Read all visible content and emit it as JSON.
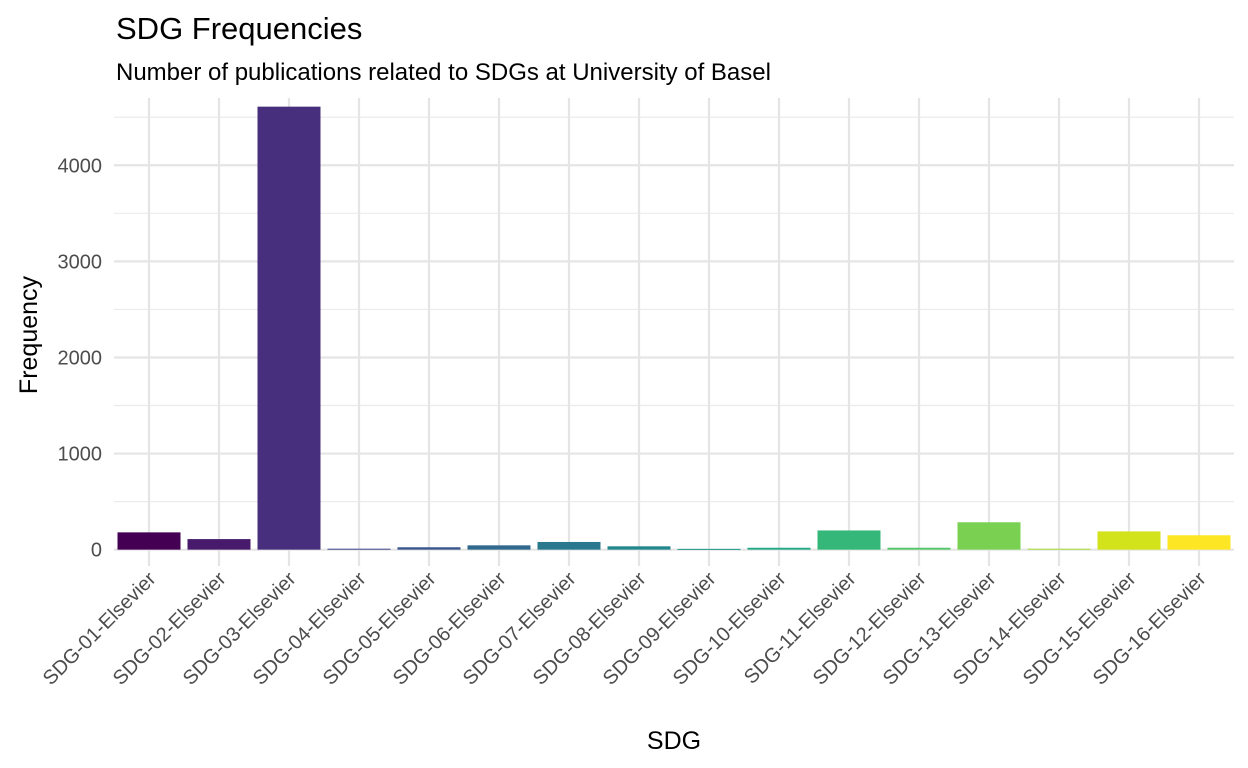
{
  "chart_data": {
    "type": "bar",
    "title": "SDG Frequencies",
    "subtitle": "Number of publications related to SDGs at University of Basel",
    "xlabel": "SDG",
    "ylabel": "Frequency",
    "categories": [
      "SDG-01-Elsevier",
      "SDG-02-Elsevier",
      "SDG-03-Elsevier",
      "SDG-04-Elsevier",
      "SDG-05-Elsevier",
      "SDG-06-Elsevier",
      "SDG-07-Elsevier",
      "SDG-08-Elsevier",
      "SDG-09-Elsevier",
      "SDG-10-Elsevier",
      "SDG-11-Elsevier",
      "SDG-12-Elsevier",
      "SDG-13-Elsevier",
      "SDG-14-Elsevier",
      "SDG-15-Elsevier",
      "SDG-16-Elsevier"
    ],
    "values": [
      180,
      110,
      4610,
      10,
      25,
      45,
      80,
      35,
      8,
      20,
      200,
      20,
      285,
      10,
      190,
      150
    ],
    "colors": [
      "#440154",
      "#481a6c",
      "#472f7d",
      "#414487",
      "#39568c",
      "#31688e",
      "#2a788e",
      "#23888e",
      "#1f988b",
      "#22a884",
      "#35b779",
      "#54c568",
      "#7ad151",
      "#a5db36",
      "#d2e21b",
      "#fde725"
    ],
    "ylim": [
      -170,
      4700
    ],
    "yticks": [
      0,
      1000,
      2000,
      3000,
      4000
    ],
    "grid": true,
    "legend": "none"
  }
}
